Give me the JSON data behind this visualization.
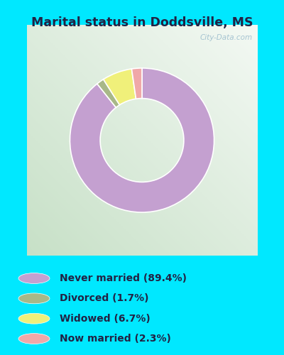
{
  "title": "Marital status in Doddsville, MS",
  "slices": [
    89.4,
    1.7,
    6.7,
    2.3
  ],
  "labels": [
    "Never married (89.4%)",
    "Divorced (1.7%)",
    "Widowed (6.7%)",
    "Now married (2.3%)"
  ],
  "colors": [
    "#c4a0d0",
    "#a8b888",
    "#f0f07a",
    "#f0a8a8"
  ],
  "legend_colors": [
    "#c4a0d0",
    "#a8b888",
    "#f0f07a",
    "#f0a8a8"
  ],
  "bg_color_outer": "#00e8ff",
  "watermark": "City-Data.com",
  "startangle": 90,
  "donut_width": 0.42,
  "title_color": "#222244"
}
